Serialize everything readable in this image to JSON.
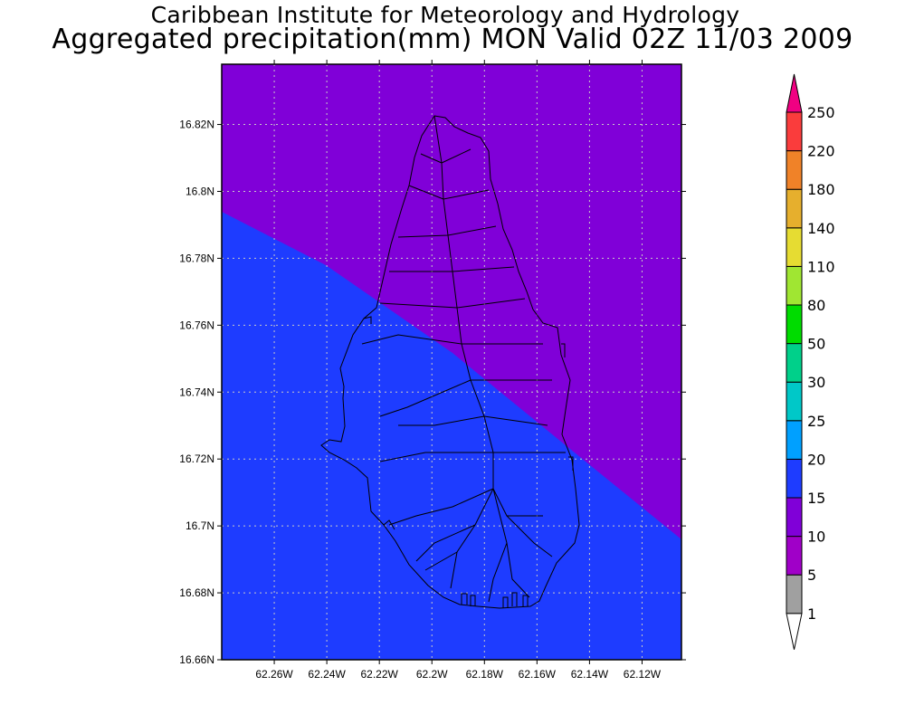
{
  "header": {
    "institution": "Caribbean Institute for Meteorology and Hydrology",
    "product": "Aggregated precipitation(mm) MON Valid 02Z 11/03 2009"
  },
  "map": {
    "lat_range": [
      16.66,
      16.838
    ],
    "lon_range": [
      -62.28,
      -62.105
    ],
    "lat_ticks": [
      {
        "value": 16.82,
        "label": "16.82N"
      },
      {
        "value": 16.8,
        "label": "16.8N"
      },
      {
        "value": 16.78,
        "label": "16.78N"
      },
      {
        "value": 16.76,
        "label": "16.76N"
      },
      {
        "value": 16.74,
        "label": "16.74N"
      },
      {
        "value": 16.72,
        "label": "16.72N"
      },
      {
        "value": 16.7,
        "label": "16.7N"
      },
      {
        "value": 16.68,
        "label": "16.68N"
      },
      {
        "value": 16.66,
        "label": "16.66N"
      }
    ],
    "lon_ticks": [
      {
        "value": -62.26,
        "label": "62.26W"
      },
      {
        "value": -62.24,
        "label": "62.24W"
      },
      {
        "value": -62.22,
        "label": "62.22W"
      },
      {
        "value": -62.2,
        "label": "62.2W"
      },
      {
        "value": -62.18,
        "label": "62.18W"
      },
      {
        "value": -62.16,
        "label": "62.16W"
      },
      {
        "value": -62.14,
        "label": "62.14W"
      },
      {
        "value": -62.12,
        "label": "62.12W"
      }
    ],
    "grid": true,
    "field_colors": {
      "10-15": "#8000d8",
      "15-20": "#1e3cff"
    },
    "outline_color": "#000000"
  },
  "colorbar": {
    "levels": [
      {
        "label": "1",
        "color": "#a0a0a0"
      },
      {
        "label": "5",
        "color": "#a000c8"
      },
      {
        "label": "10",
        "color": "#8000d8"
      },
      {
        "label": "15",
        "color": "#1e3cff"
      },
      {
        "label": "20",
        "color": "#00a0ff"
      },
      {
        "label": "25",
        "color": "#00c8c8"
      },
      {
        "label": "30",
        "color": "#00d08a"
      },
      {
        "label": "50",
        "color": "#00dc00"
      },
      {
        "label": "80",
        "color": "#a0e632"
      },
      {
        "label": "110",
        "color": "#e6dc32"
      },
      {
        "label": "140",
        "color": "#e6af2d"
      },
      {
        "label": "180",
        "color": "#f08228"
      },
      {
        "label": "220",
        "color": "#fa3c3c"
      },
      {
        "label": "250",
        "color": "#f00082"
      }
    ],
    "under_color": "#ffffff",
    "over_color": "#f00082"
  }
}
